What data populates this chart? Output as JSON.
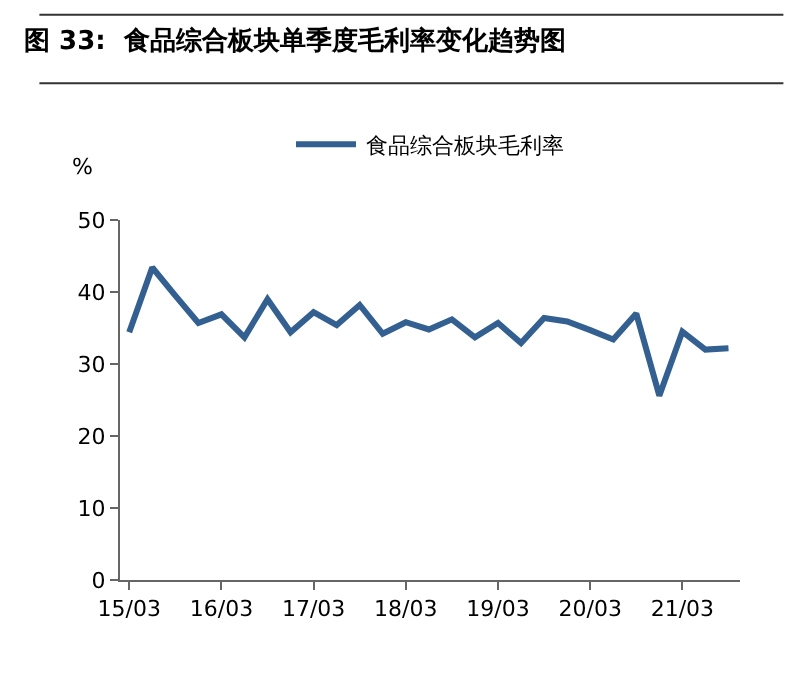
{
  "chart_data": {
    "type": "line",
    "title": "图 33:  食品综合板块单季度毛利率变化趋势图",
    "ylabel": "%",
    "categories": [
      "15/03",
      null,
      null,
      null,
      "16/03",
      null,
      null,
      null,
      "17/03",
      null,
      null,
      null,
      "18/03",
      null,
      null,
      null,
      "19/03",
      null,
      null,
      null,
      "20/03",
      null,
      null,
      null,
      "21/03",
      null,
      null
    ],
    "series": [
      {
        "name": "食品综合板块毛利率",
        "color": "#335f91",
        "values": [
          34.4,
          43.4,
          39.5,
          35.7,
          36.9,
          33.7,
          39.0,
          34.4,
          37.2,
          35.4,
          38.2,
          34.2,
          35.8,
          34.8,
          36.2,
          33.7,
          35.7,
          32.9,
          36.4,
          35.9,
          34.7,
          33.4,
          37.0,
          25.6,
          34.5,
          32.0,
          32.2
        ]
      }
    ],
    "ylim": [
      0,
      50
    ],
    "yticks": [
      0,
      10,
      20,
      30,
      40,
      50
    ],
    "legend": "top",
    "marker": "none",
    "line_style": "solid"
  }
}
